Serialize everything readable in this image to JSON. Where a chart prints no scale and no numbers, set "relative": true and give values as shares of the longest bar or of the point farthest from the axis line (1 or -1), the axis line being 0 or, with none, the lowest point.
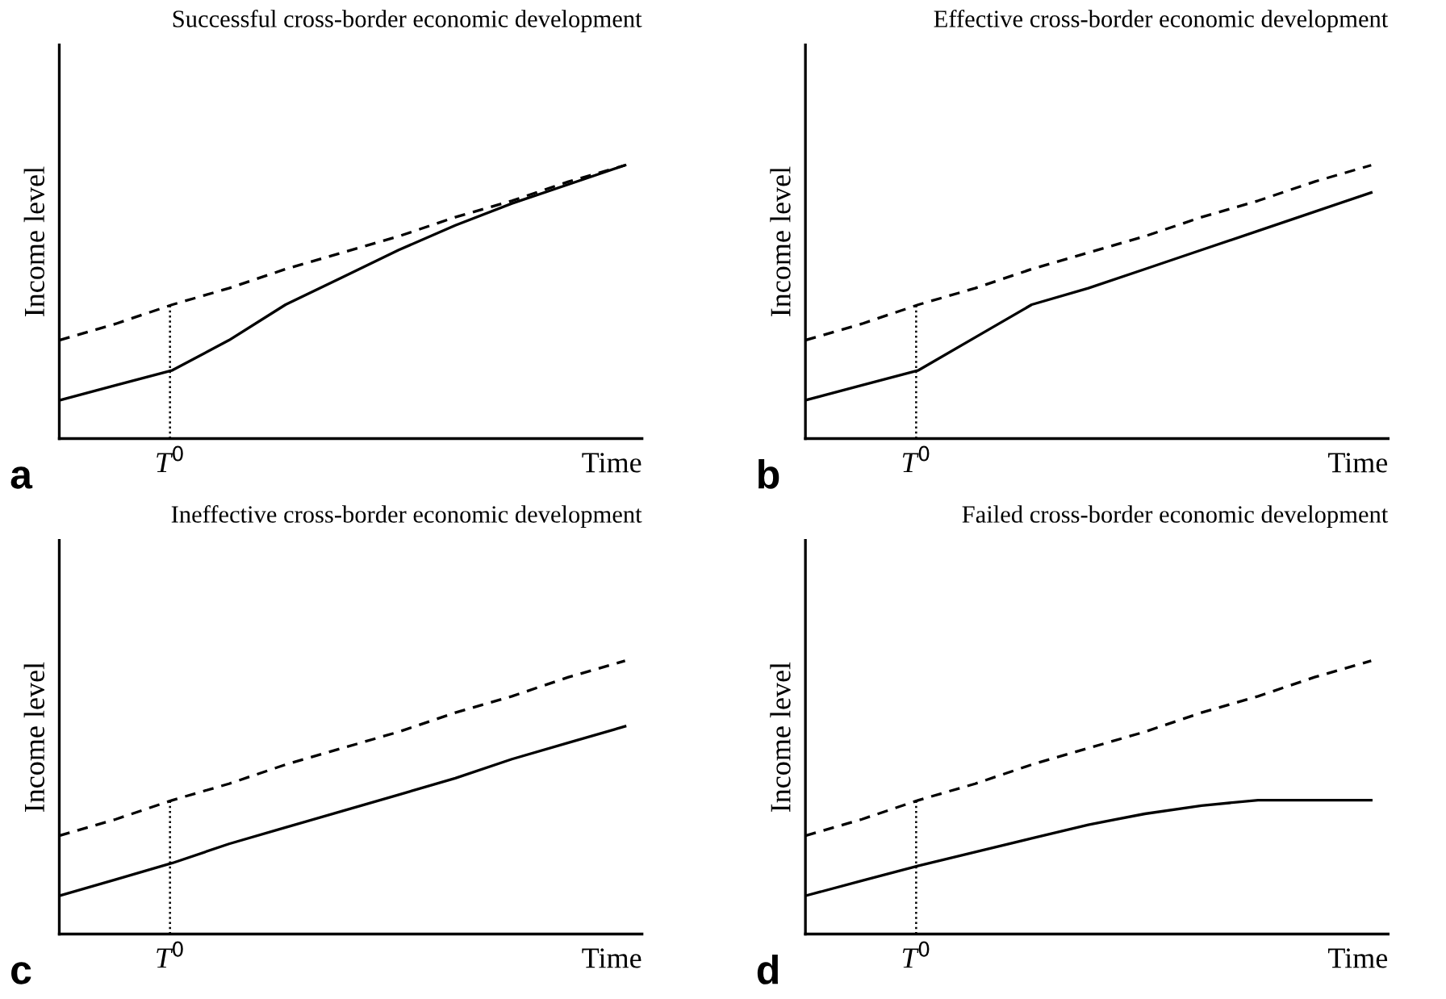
{
  "chart_data": [
    {
      "type": "line",
      "title": "Successful cross-border economic development",
      "xlabel": "Time",
      "ylabel": "Income level",
      "relative": true,
      "tick_labels": false,
      "legend": false,
      "annotations": [
        "a",
        "T$^{0}$"
      ],
      "categories": [
        null,
        null,
        null,
        null,
        null,
        null,
        null,
        null,
        null,
        null,
        null
      ],
      "series": [
        {
          "color": "#000000",
          "line_style": "dashed",
          "values": [
            0.36,
            0.42,
            0.49,
            0.55,
            0.62,
            0.68,
            0.74,
            0.81,
            0.87,
            0.94,
            1.0
          ]
        },
        {
          "color": "#000000",
          "line_style": "solid",
          "values": [
            0.14,
            0.195,
            0.25,
            0.36,
            0.49,
            0.59,
            0.69,
            0.78,
            0.86,
            0.93,
            1.0
          ]
        }
      ]
    },
    {
      "type": "line",
      "title": "Effective cross-border economic development",
      "xlabel": "Time",
      "ylabel": "Income level",
      "relative": true,
      "tick_labels": false,
      "legend": false,
      "annotations": [
        "b",
        "T$^{0}$"
      ],
      "categories": [
        null,
        null,
        null,
        null,
        null,
        null,
        null,
        null,
        null,
        null,
        null
      ],
      "series": [
        {
          "color": "#000000",
          "line_style": "dashed",
          "values": [
            0.36,
            0.42,
            0.49,
            0.55,
            0.62,
            0.68,
            0.74,
            0.81,
            0.87,
            0.94,
            1.0
          ]
        },
        {
          "color": "#000000",
          "line_style": "solid",
          "values": [
            0.14,
            0.195,
            0.25,
            0.37,
            0.49,
            0.55,
            0.62,
            0.69,
            0.76,
            0.83,
            0.9
          ]
        }
      ]
    },
    {
      "type": "line",
      "title": "Ineffective cross-border economic development",
      "xlabel": "Time",
      "ylabel": "Income level",
      "relative": true,
      "tick_labels": false,
      "legend": false,
      "annotations": [
        "c",
        "T$^{0}$"
      ],
      "categories": [
        null,
        null,
        null,
        null,
        null,
        null,
        null,
        null,
        null,
        null,
        null
      ],
      "series": [
        {
          "color": "#000000",
          "line_style": "dashed",
          "values": [
            0.36,
            0.42,
            0.49,
            0.55,
            0.62,
            0.68,
            0.74,
            0.81,
            0.87,
            0.94,
            1.0
          ]
        },
        {
          "color": "#000000",
          "line_style": "solid",
          "values": [
            0.14,
            0.2,
            0.26,
            0.33,
            0.39,
            0.45,
            0.51,
            0.57,
            0.64,
            0.7,
            0.76
          ]
        }
      ]
    },
    {
      "type": "line",
      "title": "Failed cross-border economic development",
      "xlabel": "Time",
      "ylabel": "Income level",
      "relative": true,
      "tick_labels": false,
      "legend": false,
      "annotations": [
        "d",
        "T$^{0}$"
      ],
      "categories": [
        null,
        null,
        null,
        null,
        null,
        null,
        null,
        null,
        null,
        null,
        null
      ],
      "series": [
        {
          "color": "#000000",
          "line_style": "dashed",
          "values": [
            0.36,
            0.42,
            0.49,
            0.55,
            0.62,
            0.68,
            0.74,
            0.81,
            0.87,
            0.94,
            1.0
          ]
        },
        {
          "color": "#000000",
          "line_style": "solid",
          "values": [
            0.14,
            0.195,
            0.25,
            0.3,
            0.35,
            0.4,
            0.44,
            0.47,
            0.49,
            0.49,
            0.49
          ]
        }
      ]
    }
  ]
}
